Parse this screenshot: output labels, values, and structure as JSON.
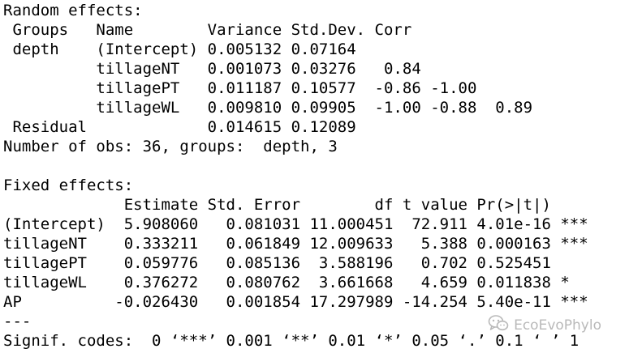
{
  "console": {
    "lines": [
      "Random effects:",
      " Groups   Name        Variance Std.Dev. Corr",
      " depth    (Intercept) 0.005132 0.07164",
      "          tillageNT   0.001073 0.03276   0.84",
      "          tillagePT   0.011187 0.10577  -0.86 -1.00",
      "          tillageWL   0.009810 0.09905  -1.00 -0.88  0.89",
      " Residual             0.014615 0.12089",
      "Number of obs: 36, groups:  depth, 3",
      "",
      "Fixed effects:",
      "             Estimate Std. Error        df t value Pr(>|t|)",
      "(Intercept)  5.908060   0.081031 11.000451  72.911 4.01e-16 ***",
      "tillageNT    0.333211   0.061849 12.009633   5.388 0.000163 ***",
      "tillagePT    0.059776   0.085136  3.588196   0.702 0.525451",
      "tillageWL    0.376272   0.080762  3.661668   4.659 0.011838 *",
      "AP          -0.026430   0.001854 17.297989 -14.254 5.40e-11 ***",
      "---",
      "Signif. codes:  0 ‘***’ 0.001 ‘**’ 0.01 ‘*’ 0.05 ‘.’ 0.1 ‘ ’ 1"
    ]
  },
  "watermark": {
    "text": "EcoEvoPhylo",
    "icon": "wechat-icon",
    "color": "#b9b9b9"
  }
}
